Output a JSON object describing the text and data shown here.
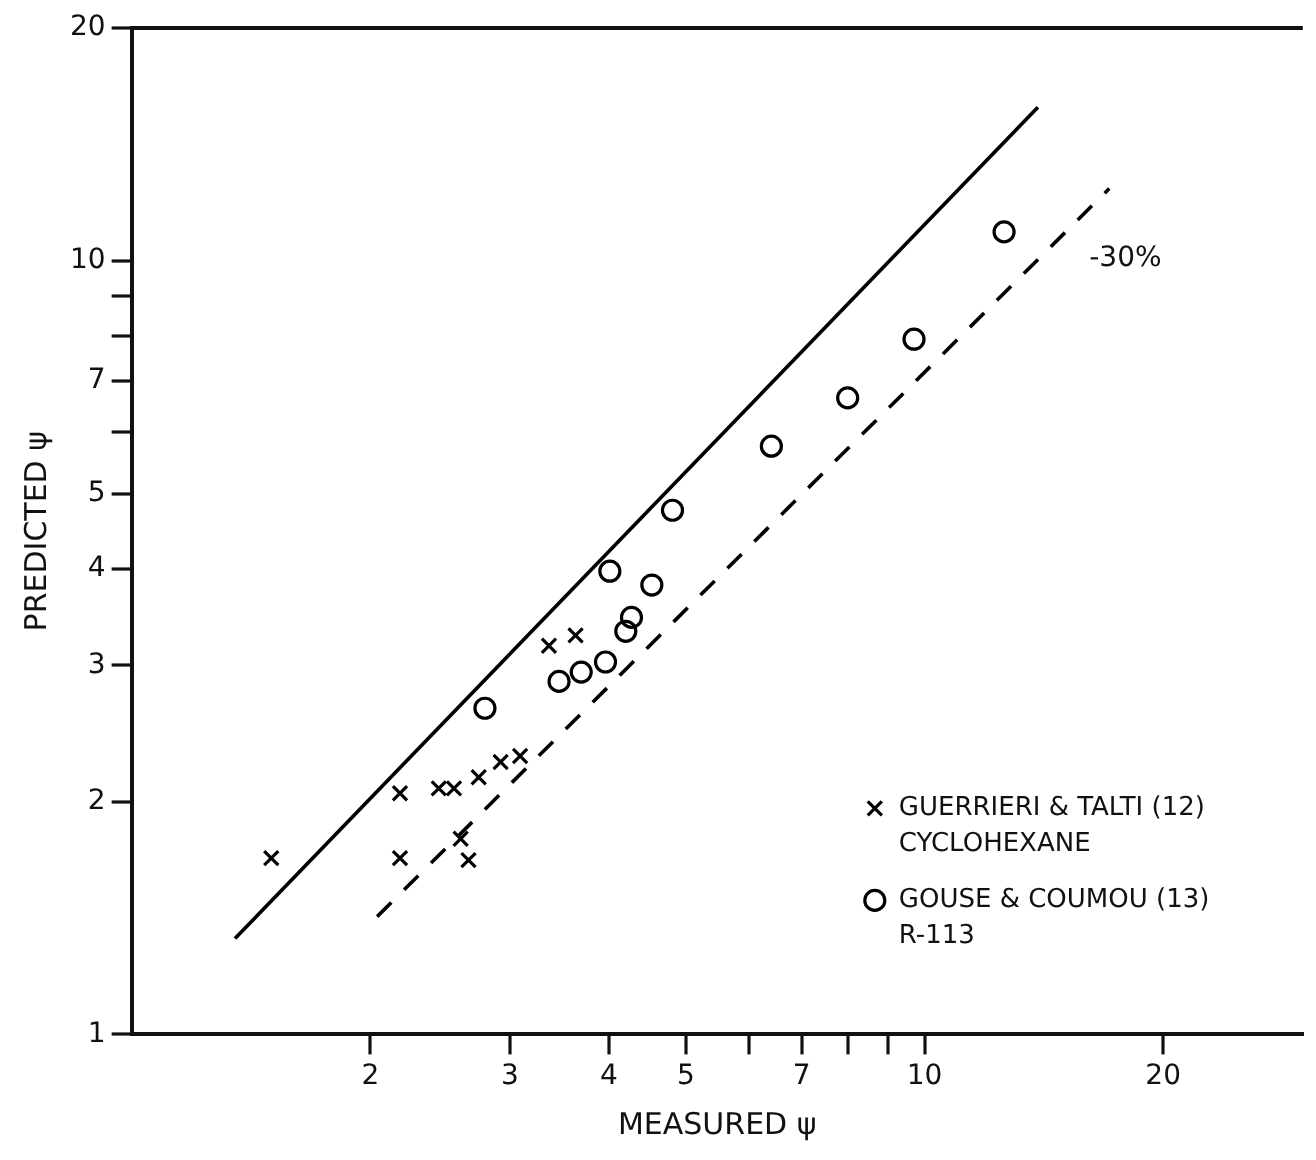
{
  "chart_data": {
    "type": "scatter",
    "xlabel": "MEASURED ψ",
    "ylabel": "PREDICTED ψ",
    "log": "xy",
    "grid": false,
    "legend": "bottom right",
    "xlim": [
      1,
      30
    ],
    "ylim": [
      1,
      20
    ],
    "xticks": [
      2,
      3,
      4,
      5,
      {
        "value": 6,
        "label": null
      },
      7,
      {
        "value": 8,
        "label": null
      },
      {
        "value": 9,
        "label": null
      },
      10,
      20
    ],
    "yticks": [
      1,
      2,
      3,
      4,
      5,
      {
        "value": 6,
        "label": null
      },
      7,
      {
        "value": 8,
        "label": null
      },
      {
        "value": 9,
        "label": null
      },
      10,
      20
    ],
    "series": [
      {
        "name": "GUERRIERI & TALTI (12) CYCLOHEXANE",
        "color": "#000000",
        "marker": "cross",
        "x": [
          1.5,
          2.18,
          2.18,
          2.44,
          2.55,
          2.74,
          2.92,
          3.09,
          2.6,
          2.66,
          3.36,
          3.63
        ],
        "values": [
          1.69,
          2.05,
          1.69,
          2.08,
          2.08,
          2.15,
          2.25,
          2.29,
          1.79,
          1.68,
          3.18,
          3.28
        ]
      },
      {
        "name": "GOUSE & COUMOU (13) R-113",
        "color": "#000000",
        "marker": "circle",
        "x": [
          2.79,
          3.46,
          3.69,
          3.96,
          4.2,
          4.27,
          4.53,
          4.01,
          4.81,
          6.41,
          8.0,
          9.7,
          12.6
        ],
        "values": [
          2.64,
          2.86,
          2.94,
          3.03,
          3.32,
          3.46,
          3.81,
          3.97,
          4.76,
          5.76,
          6.65,
          7.92,
          10.9
        ]
      },
      {
        "type": "line",
        "color": "#000000",
        "line_style": "solid",
        "marker": "none",
        "x": [
          1.35,
          13.9
        ],
        "values": [
          1.33,
          15.8
        ]
      },
      {
        "type": "line",
        "color": "#000000",
        "line_style": "dashed",
        "marker": "none",
        "x": [
          2.04,
          17.1
        ],
        "values": [
          1.42,
          12.4
        ]
      }
    ],
    "annotations": [
      "-30%"
    ]
  }
}
